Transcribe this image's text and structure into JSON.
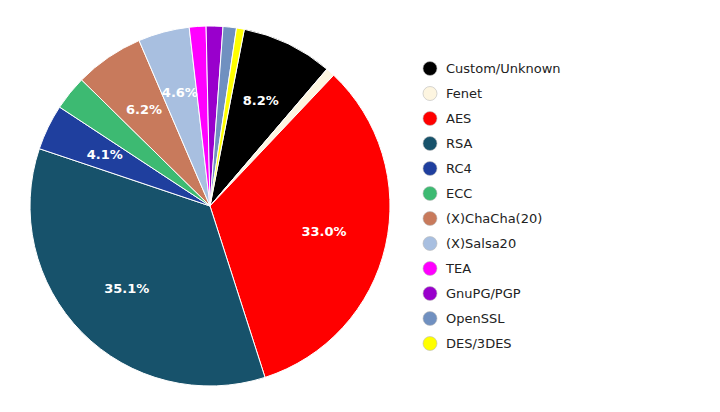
{
  "chart_data": {
    "type": "pie",
    "categories": [
      "Custom/Unknown",
      "Fenet",
      "AES",
      "RSA",
      "RC4",
      "ECC",
      "(X)ChaCha(20)",
      "(X)Salsa20",
      "TEA",
      "GnuPG/PGP",
      "OpenSSL",
      "DES/3DES"
    ],
    "values": [
      8.2,
      0.8,
      33.0,
      35.1,
      4.1,
      3.1,
      6.2,
      4.6,
      1.5,
      1.5,
      1.2,
      0.7
    ],
    "value_labels": [
      "8.2%",
      null,
      "33.0%",
      "35.1%",
      "4.1%",
      null,
      "6.2%",
      "4.6%",
      null,
      null,
      null,
      null
    ],
    "colors": [
      "#000000",
      "#fdf5e0",
      "#ff0000",
      "#17526b",
      "#1f3f9e",
      "#3dba72",
      "#c87a5c",
      "#a8bfe0",
      "#ff00ff",
      "#9900cc",
      "#7090c0",
      "#ffff00"
    ],
    "data_labels": true,
    "legend": "right"
  }
}
